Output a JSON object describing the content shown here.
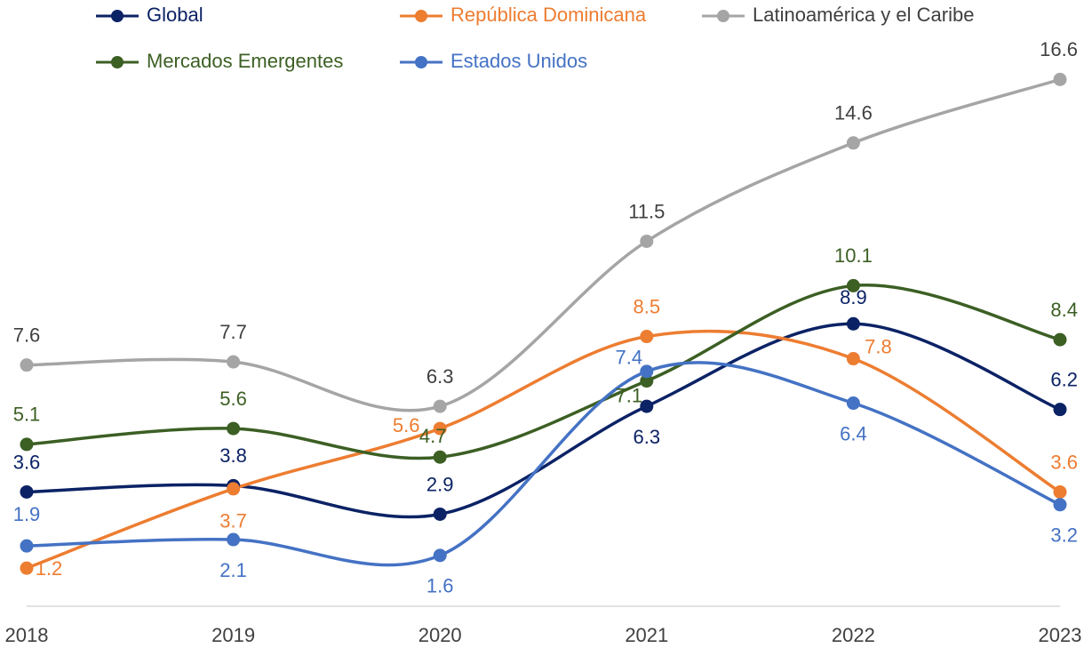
{
  "chart_data": {
    "type": "line",
    "categories": [
      "2018",
      "2019",
      "2020",
      "2021",
      "2022",
      "2023"
    ],
    "series": [
      {
        "name": "Global",
        "color": "#0b2265",
        "values": [
          3.6,
          3.8,
          2.9,
          6.3,
          8.9,
          6.2
        ]
      },
      {
        "name": "República Dominicana",
        "color": "#ed7d31",
        "values": [
          1.2,
          3.7,
          5.6,
          8.5,
          7.8,
          3.6
        ]
      },
      {
        "name": "Latinoamérica y el Caribe",
        "color": "#a5a5a5",
        "values": [
          7.6,
          7.7,
          6.3,
          11.5,
          14.6,
          16.6
        ]
      },
      {
        "name": "Mercados Emergentes",
        "color": "#3c5f24",
        "values": [
          5.1,
          5.6,
          4.7,
          7.1,
          10.1,
          8.4
        ]
      },
      {
        "name": "Estados Unidos",
        "color": "#4472c4",
        "values": [
          1.9,
          2.1,
          1.6,
          7.4,
          6.4,
          3.2
        ]
      }
    ],
    "ylim": [
      0,
      18
    ],
    "smooth": true
  }
}
